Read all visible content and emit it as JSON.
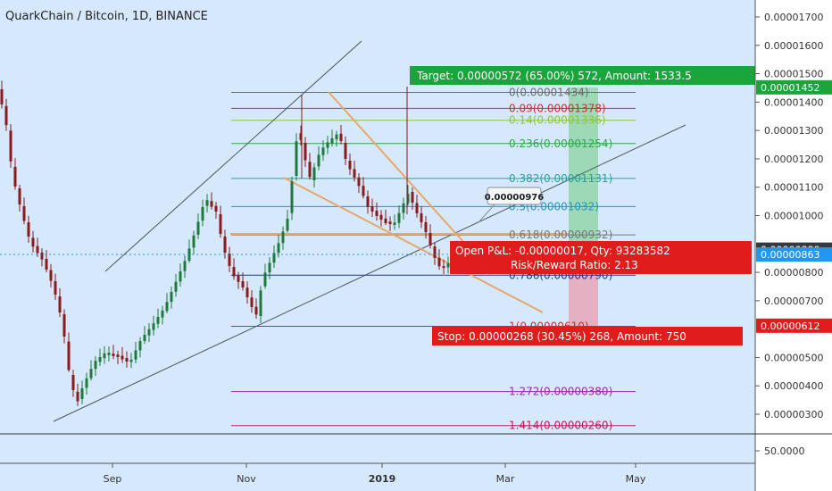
{
  "title": "QuarkChain / Bitcoin, 1D, BINANCE",
  "colors": {
    "background": "#d6e8fb",
    "axis_bg": "#ffffff",
    "candle_up": "#1f7a3a",
    "candle_down": "#8b1a1a",
    "trend": "#4a5560",
    "orange": "#e6a86a",
    "target_green": "#1aa53a",
    "stop_red": "#e01c1c",
    "price_blue": "#2196f3",
    "dark": "#333a42"
  },
  "chart_data": {
    "type": "candlestick",
    "symbol": "QuarkChain / Bitcoin",
    "interval": "1D",
    "exchange": "BINANCE",
    "y_ticks": [
      "0.00001700",
      "0.00001600",
      "0.00001500",
      "0.00001400",
      "0.00001300",
      "0.00001200",
      "0.00001100",
      "0.00001000",
      "0.00000800",
      "0.00000700",
      "0.00000500",
      "0.00000400",
      "0.00000300"
    ],
    "x_ticks": [
      "Sep",
      "Nov",
      "2019",
      "Mar",
      "May"
    ],
    "fib_levels": [
      {
        "label": "0(0.00001434)",
        "value": 1.434e-05,
        "color": "#6d6d6d"
      },
      {
        "label": "0.09(0.00001378)",
        "value": 1.378e-05,
        "color": "#d42a2a"
      },
      {
        "label": "0.14(0.00001336)",
        "value": 1.336e-05,
        "color": "#8cc63f"
      },
      {
        "label": "0.236(0.00001254)",
        "value": 1.254e-05,
        "color": "#2ea84a"
      },
      {
        "label": "0.382(0.00001131)",
        "value": 1.131e-05,
        "color": "#26a69a"
      },
      {
        "label": "0.5(0.00001032)",
        "value": 1.032e-05,
        "color": "#2196c8"
      },
      {
        "label": "0.618(0.00000932)",
        "value": 9.32e-06,
        "color": "#777777"
      },
      {
        "label": "0.786(0.00000790)",
        "value": 7.9e-06,
        "color": "#1e3a8a"
      },
      {
        "label": "1(0.00000610)",
        "value": 6.1e-06,
        "color": "#d42a2a"
      },
      {
        "label": "1.272(0.00000380)",
        "value": 3.8e-06,
        "color": "#9c27b0"
      },
      {
        "label": "1.414(0.00000260)",
        "value": 2.6e-06,
        "color": "#c2185b"
      }
    ],
    "annotations": {
      "target": "Target: 0.00000572 (65.00%) 572, Amount: 1533.5",
      "pnl": "Open P&L: -0.00000017, Qty: 93283582",
      "risk_reward": "Risk/Reward Ratio: 2.13",
      "stop": "Stop: 0.00000268 (30.45%) 268, Amount: 750",
      "callout": "0.00000976"
    },
    "price_labels": [
      {
        "text": "0.00001452",
        "value": 1.452e-05,
        "color": "#1aa53a"
      },
      {
        "text": "0.00000880",
        "value": 8.8e-06,
        "color": "#333a42"
      },
      {
        "text": "0.00000863",
        "value": 8.63e-06,
        "color": "#2196f3"
      },
      {
        "text": "0.00000612",
        "value": 6.12e-06,
        "color": "#e01c1c"
      }
    ],
    "indicator_pane": {
      "tick": "50.0000"
    }
  }
}
